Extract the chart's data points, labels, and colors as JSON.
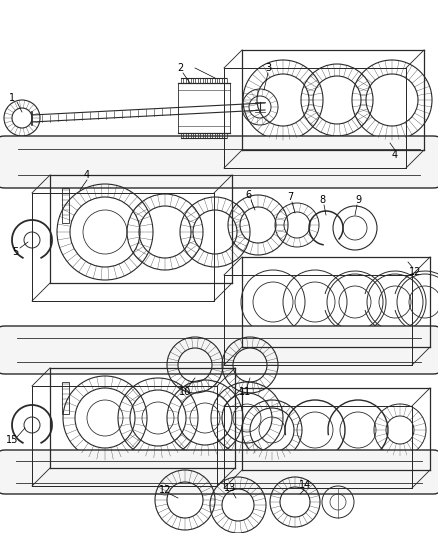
{
  "bg_color": "#ffffff",
  "line_color": "#2a2a2a",
  "gray_color": "#888888",
  "light_gray": "#cccccc",
  "figsize": [
    4.38,
    5.33
  ],
  "dpi": 100
}
